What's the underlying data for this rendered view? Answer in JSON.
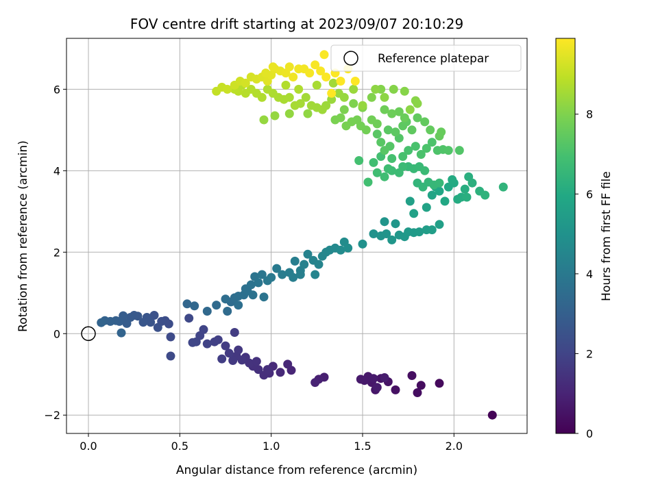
{
  "chart_data": {
    "type": "scatter",
    "title": "FOV centre drift starting at 2023/09/07 20:10:29",
    "xlabel": "Angular distance from reference (arcmin)",
    "ylabel": "Rotation from reference (arcmin)",
    "xlim": [
      -0.12,
      2.4
    ],
    "ylim": [
      -2.45,
      7.25
    ],
    "xticks": [
      0.0,
      0.5,
      1.0,
      1.5,
      2.0
    ],
    "xtick_labels": [
      "0.0",
      "0.5",
      "1.0",
      "1.5",
      "2.0"
    ],
    "yticks": [
      -2,
      0,
      2,
      4,
      6
    ],
    "ytick_labels": [
      "−2",
      "0",
      "2",
      "4",
      "6"
    ],
    "grid": true,
    "legend_position": "top-right",
    "legend": [
      {
        "label": "Reference platepar",
        "marker": "open-circle"
      }
    ],
    "colormap": "viridis",
    "colorbar": {
      "label": "Hours from first FF file",
      "range": [
        0,
        9.9
      ],
      "ticks": [
        0,
        2,
        4,
        6,
        8
      ],
      "tick_labels": [
        "0",
        "2",
        "4",
        "6",
        "8"
      ]
    },
    "reference_point": {
      "x": 0.0,
      "y": 0.0
    },
    "points": [
      [
        2.21,
        -2.0,
        0.05
      ],
      [
        1.92,
        -1.22,
        0.25
      ],
      [
        1.82,
        -1.27,
        0.3
      ],
      [
        1.8,
        -1.45,
        0.35
      ],
      [
        1.77,
        -1.03,
        0.4
      ],
      [
        1.68,
        -1.38,
        0.45
      ],
      [
        1.64,
        -1.18,
        0.5
      ],
      [
        1.6,
        -1.1,
        0.55
      ],
      [
        1.57,
        -1.38,
        0.6
      ],
      [
        1.55,
        -1.2,
        0.62
      ],
      [
        1.53,
        -1.05,
        0.65
      ],
      [
        1.51,
        -1.15,
        0.68
      ],
      [
        1.49,
        -1.12,
        0.7
      ],
      [
        1.56,
        -1.1,
        0.72
      ],
      [
        1.58,
        -1.32,
        0.75
      ],
      [
        1.62,
        -1.08,
        0.78
      ],
      [
        1.29,
        -1.07,
        0.85
      ],
      [
        1.26,
        -1.12,
        0.9
      ],
      [
        1.24,
        -1.2,
        0.95
      ],
      [
        1.11,
        -0.9,
        1.05
      ],
      [
        1.09,
        -0.75,
        1.1
      ],
      [
        1.05,
        -0.95,
        1.15
      ],
      [
        1.01,
        -0.8,
        1.2
      ],
      [
        0.99,
        -0.97,
        1.25
      ],
      [
        0.96,
        -1.02,
        1.3
      ],
      [
        0.93,
        -0.88,
        1.35
      ],
      [
        0.9,
        -0.8,
        1.4
      ],
      [
        0.88,
        -0.72,
        1.45
      ],
      [
        0.86,
        -0.58,
        1.5
      ],
      [
        0.84,
        -0.65,
        1.55
      ],
      [
        0.81,
        -0.55,
        1.6
      ],
      [
        0.79,
        -0.66,
        1.65
      ],
      [
        0.77,
        -0.48,
        1.7
      ],
      [
        0.75,
        -0.3,
        1.75
      ],
      [
        0.73,
        -0.62,
        1.8
      ],
      [
        0.71,
        -0.15,
        1.85
      ],
      [
        0.69,
        -0.2,
        1.9
      ],
      [
        0.65,
        -0.25,
        1.95
      ],
      [
        0.61,
        -0.05,
        2.0
      ],
      [
        0.59,
        -0.2,
        2.05
      ],
      [
        0.57,
        -0.22,
        2.1
      ],
      [
        0.55,
        0.38,
        2.15
      ],
      [
        0.45,
        -0.55,
        2.2
      ],
      [
        0.92,
        -0.68,
        1.42
      ],
      [
        0.98,
        -0.88,
        1.32
      ],
      [
        0.82,
        -0.4,
        1.62
      ],
      [
        0.8,
        0.03,
        1.75
      ],
      [
        0.63,
        0.1,
        2.02
      ],
      [
        0.45,
        -0.08,
        2.25
      ],
      [
        0.44,
        0.24,
        2.3
      ],
      [
        0.42,
        0.32,
        2.35
      ],
      [
        0.4,
        0.3,
        2.4
      ],
      [
        0.38,
        0.15,
        2.45
      ],
      [
        0.36,
        0.45,
        2.5
      ],
      [
        0.34,
        0.28,
        2.55
      ],
      [
        0.32,
        0.4,
        2.6
      ],
      [
        0.3,
        0.28,
        2.65
      ],
      [
        0.27,
        0.43,
        2.7
      ],
      [
        0.25,
        0.45,
        2.75
      ],
      [
        0.23,
        0.4,
        2.8
      ],
      [
        0.21,
        0.25,
        2.85
      ],
      [
        0.19,
        0.44,
        2.9
      ],
      [
        0.17,
        0.3,
        2.95
      ],
      [
        0.15,
        0.32,
        3.0
      ],
      [
        0.12,
        0.3,
        3.05
      ],
      [
        0.09,
        0.32,
        3.1
      ],
      [
        0.07,
        0.27,
        3.15
      ],
      [
        0.18,
        0.02,
        3.18
      ],
      [
        0.54,
        0.73,
        3.25
      ],
      [
        0.58,
        0.68,
        3.3
      ],
      [
        0.65,
        0.55,
        3.35
      ],
      [
        0.7,
        0.7,
        3.4
      ],
      [
        0.76,
        0.55,
        3.45
      ],
      [
        0.78,
        0.78,
        3.5
      ],
      [
        0.8,
        0.88,
        3.55
      ],
      [
        0.82,
        0.92,
        3.6
      ],
      [
        0.85,
        0.95,
        3.65
      ],
      [
        0.87,
        1.05,
        3.7
      ],
      [
        0.89,
        1.2,
        3.75
      ],
      [
        0.91,
        1.4,
        3.8
      ],
      [
        0.93,
        1.25,
        3.85
      ],
      [
        0.95,
        1.45,
        3.9
      ],
      [
        0.98,
        1.3,
        3.95
      ],
      [
        1.0,
        1.38,
        4.0
      ],
      [
        1.03,
        1.6,
        4.05
      ],
      [
        1.06,
        1.45,
        4.1
      ],
      [
        1.1,
        1.5,
        4.15
      ],
      [
        1.13,
        1.78,
        4.2
      ],
      [
        1.16,
        1.55,
        4.25
      ],
      [
        1.18,
        1.7,
        4.3
      ],
      [
        1.2,
        1.95,
        4.35
      ],
      [
        1.23,
        1.8,
        4.4
      ],
      [
        1.26,
        1.7,
        4.45
      ],
      [
        1.28,
        1.9,
        4.5
      ],
      [
        1.3,
        2.0,
        4.55
      ],
      [
        1.32,
        2.05,
        4.6
      ],
      [
        1.35,
        2.1,
        4.65
      ],
      [
        1.38,
        2.05,
        4.7
      ],
      [
        1.4,
        2.25,
        4.75
      ],
      [
        1.42,
        2.1,
        4.8
      ],
      [
        0.75,
        0.85,
        3.55
      ],
      [
        0.86,
        1.1,
        3.68
      ],
      [
        1.16,
        1.45,
        4.22
      ],
      [
        1.24,
        1.45,
        4.42
      ],
      [
        1.12,
        1.38,
        4.18
      ],
      [
        0.82,
        0.7,
        3.6
      ],
      [
        0.9,
        0.95,
        3.72
      ],
      [
        0.96,
        0.9,
        3.82
      ],
      [
        1.5,
        2.2,
        4.95
      ],
      [
        1.56,
        2.45,
        5.0
      ],
      [
        1.6,
        2.4,
        5.05
      ],
      [
        1.63,
        2.45,
        5.1
      ],
      [
        1.66,
        2.3,
        5.15
      ],
      [
        1.7,
        2.42,
        5.2
      ],
      [
        1.73,
        2.38,
        5.25
      ],
      [
        1.75,
        2.5,
        5.3
      ],
      [
        1.78,
        2.48,
        5.35
      ],
      [
        1.81,
        2.5,
        5.4
      ],
      [
        1.85,
        2.55,
        5.45
      ],
      [
        1.88,
        2.55,
        5.5
      ],
      [
        1.92,
        2.68,
        5.55
      ],
      [
        1.62,
        2.75,
        5.12
      ],
      [
        1.68,
        2.7,
        5.18
      ],
      [
        1.76,
        3.25,
        5.6
      ],
      [
        1.78,
        2.95,
        5.62
      ],
      [
        1.85,
        3.1,
        5.7
      ],
      [
        1.88,
        3.4,
        5.75
      ],
      [
        1.9,
        3.6,
        5.8
      ],
      [
        1.92,
        3.5,
        5.85
      ],
      [
        1.95,
        3.25,
        5.9
      ],
      [
        1.97,
        3.6,
        5.95
      ],
      [
        2.0,
        3.7,
        6.0
      ],
      [
        2.02,
        3.3,
        6.05
      ],
      [
        2.04,
        3.35,
        6.1
      ],
      [
        2.06,
        3.55,
        6.15
      ],
      [
        2.08,
        3.85,
        6.2
      ],
      [
        2.1,
        3.7,
        6.25
      ],
      [
        2.14,
        3.5,
        6.3
      ],
      [
        2.17,
        3.4,
        6.35
      ],
      [
        2.27,
        3.6,
        6.4
      ],
      [
        1.99,
        3.78,
        6.02
      ],
      [
        2.07,
        3.35,
        6.18
      ],
      [
        1.8,
        3.7,
        6.45
      ],
      [
        1.83,
        3.6,
        6.5
      ],
      [
        1.86,
        3.72,
        6.52
      ],
      [
        1.89,
        3.65,
        6.55
      ],
      [
        1.92,
        3.7,
        6.58
      ],
      [
        1.75,
        4.1,
        6.6
      ],
      [
        1.78,
        4.05,
        6.62
      ],
      [
        1.81,
        4.1,
        6.65
      ],
      [
        1.84,
        4.0,
        6.68
      ],
      [
        1.72,
        4.1,
        6.7
      ],
      [
        1.7,
        3.95,
        6.72
      ],
      [
        1.66,
        4.0,
        6.75
      ],
      [
        1.64,
        4.05,
        6.78
      ],
      [
        1.62,
        3.85,
        6.8
      ],
      [
        1.58,
        3.95,
        6.82
      ],
      [
        1.56,
        4.2,
        6.85
      ],
      [
        1.53,
        3.72,
        6.88
      ],
      [
        1.6,
        4.35,
        6.9
      ],
      [
        1.48,
        4.25,
        6.92
      ],
      [
        1.66,
        4.3,
        6.95
      ],
      [
        1.72,
        4.35,
        6.98
      ],
      [
        1.75,
        4.5,
        7.0
      ],
      [
        1.79,
        4.6,
        7.02
      ],
      [
        1.82,
        4.4,
        7.05
      ],
      [
        1.85,
        4.55,
        7.08
      ],
      [
        1.88,
        4.7,
        7.1
      ],
      [
        1.91,
        4.5,
        7.12
      ],
      [
        1.94,
        4.52,
        7.15
      ],
      [
        1.97,
        4.5,
        7.18
      ],
      [
        2.03,
        4.5,
        7.2
      ],
      [
        1.7,
        4.8,
        7.22
      ],
      [
        1.65,
        4.6,
        7.25
      ],
      [
        1.62,
        4.5,
        7.28
      ],
      [
        1.6,
        4.7,
        7.3
      ],
      [
        1.58,
        4.9,
        7.32
      ],
      [
        1.64,
        5.0,
        7.35
      ],
      [
        1.68,
        4.95,
        7.38
      ],
      [
        1.72,
        5.1,
        7.4
      ],
      [
        1.74,
        5.2,
        7.42
      ],
      [
        1.77,
        5.0,
        7.45
      ],
      [
        1.8,
        5.3,
        7.48
      ],
      [
        1.84,
        5.2,
        7.5
      ],
      [
        1.87,
        5.0,
        7.52
      ],
      [
        1.92,
        4.85,
        7.55
      ],
      [
        1.93,
        4.95,
        7.58
      ],
      [
        1.73,
        5.3,
        7.62
      ],
      [
        1.7,
        5.45,
        7.65
      ],
      [
        1.66,
        5.4,
        7.68
      ],
      [
        1.62,
        5.5,
        7.7
      ],
      [
        1.58,
        5.15,
        7.72
      ],
      [
        1.55,
        5.25,
        7.75
      ],
      [
        1.52,
        5.0,
        7.78
      ],
      [
        1.49,
        5.1,
        7.8
      ],
      [
        1.47,
        5.25,
        7.82
      ],
      [
        1.44,
        5.2,
        7.85
      ],
      [
        1.41,
        5.1,
        7.88
      ],
      [
        1.38,
        5.3,
        7.9
      ],
      [
        1.35,
        5.25,
        7.92
      ],
      [
        1.4,
        5.5,
        7.95
      ],
      [
        1.45,
        5.65,
        7.98
      ],
      [
        1.5,
        5.55,
        8.0
      ],
      [
        1.55,
        5.8,
        8.02
      ],
      [
        1.6,
        6.0,
        8.05
      ],
      [
        1.67,
        6.0,
        8.08
      ],
      [
        1.73,
        5.95,
        8.1
      ],
      [
        1.79,
        5.72,
        8.12
      ],
      [
        1.8,
        5.65,
        8.15
      ],
      [
        1.76,
        5.5,
        8.18
      ],
      [
        1.62,
        5.8,
        8.2
      ],
      [
        1.57,
        6.0,
        8.22
      ],
      [
        1.2,
        5.4,
        8.25
      ],
      [
        1.1,
        5.4,
        8.28
      ],
      [
        1.02,
        5.35,
        8.3
      ],
      [
        0.96,
        5.25,
        8.32
      ],
      [
        1.4,
        5.8,
        8.35
      ],
      [
        1.37,
        5.9,
        8.38
      ],
      [
        1.33,
        5.75,
        8.4
      ],
      [
        1.3,
        5.6,
        8.42
      ],
      [
        1.28,
        5.5,
        8.45
      ],
      [
        1.25,
        5.55,
        8.48
      ],
      [
        1.22,
        5.6,
        8.5
      ],
      [
        1.19,
        5.8,
        8.52
      ],
      [
        1.16,
        5.65,
        8.55
      ],
      [
        1.13,
        5.6,
        8.58
      ],
      [
        1.1,
        5.8,
        8.6
      ],
      [
        1.07,
        5.75,
        8.62
      ],
      [
        1.04,
        5.8,
        8.65
      ],
      [
        1.01,
        5.9,
        8.68
      ],
      [
        0.98,
        6.0,
        8.7
      ],
      [
        0.95,
        5.8,
        8.72
      ],
      [
        0.92,
        5.9,
        8.75
      ],
      [
        0.89,
        6.0,
        8.78
      ],
      [
        0.86,
        5.9,
        8.8
      ],
      [
        0.84,
        6.1,
        8.82
      ],
      [
        0.82,
        5.95,
        8.85
      ],
      [
        0.8,
        6.0,
        8.88
      ],
      [
        1.5,
        5.6,
        8.32
      ],
      [
        1.45,
        6.0,
        8.4
      ],
      [
        1.34,
        6.15,
        8.5
      ],
      [
        1.25,
        6.1,
        8.6
      ],
      [
        1.15,
        6.0,
        8.7
      ],
      [
        1.08,
        6.1,
        8.75
      ],
      [
        0.7,
        5.95,
        9.0
      ],
      [
        0.73,
        6.05,
        9.05
      ],
      [
        0.76,
        6.0,
        9.1
      ],
      [
        0.8,
        6.1,
        9.15
      ],
      [
        0.83,
        6.2,
        9.2
      ],
      [
        0.86,
        6.15,
        9.25
      ],
      [
        0.89,
        6.3,
        9.3
      ],
      [
        0.92,
        6.25,
        9.35
      ],
      [
        0.95,
        6.3,
        9.4
      ],
      [
        0.98,
        6.2,
        9.45
      ],
      [
        1.0,
        6.35,
        9.5
      ],
      [
        1.02,
        6.5,
        9.55
      ],
      [
        1.05,
        6.45,
        9.6
      ],
      [
        1.08,
        6.4,
        9.65
      ],
      [
        1.12,
        6.3,
        9.7
      ],
      [
        1.15,
        6.5,
        9.72
      ],
      [
        1.18,
        6.5,
        9.75
      ],
      [
        1.21,
        6.4,
        9.78
      ],
      [
        1.24,
        6.6,
        9.8
      ],
      [
        1.27,
        6.45,
        9.82
      ],
      [
        1.29,
        6.85,
        9.84
      ],
      [
        1.3,
        6.3,
        9.86
      ],
      [
        1.35,
        6.4,
        9.87
      ],
      [
        1.38,
        6.2,
        9.88
      ],
      [
        1.42,
        6.5,
        9.89
      ],
      [
        1.46,
        6.2,
        9.9
      ],
      [
        1.33,
        5.9,
        9.9
      ],
      [
        1.01,
        6.55,
        9.6
      ],
      [
        1.1,
        6.55,
        9.68
      ],
      [
        0.97,
        6.4,
        9.48
      ]
    ]
  }
}
